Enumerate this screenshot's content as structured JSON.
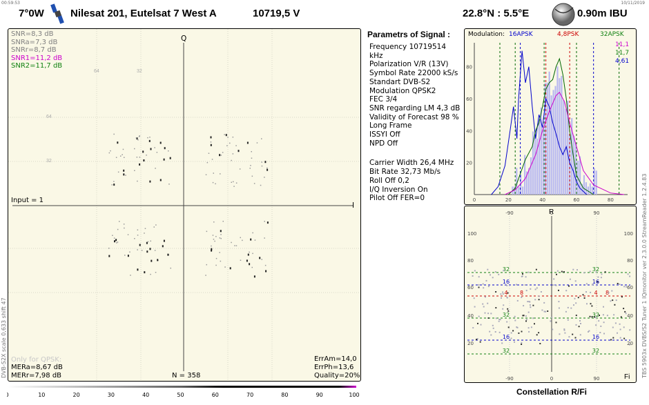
{
  "header": {
    "time": "00:59:53",
    "date": "10/11/2019",
    "sat_pos": "7°0W",
    "sat_name": "Nilesat 201, Eutelsat 7 West A",
    "freq_pol": "10719,5  V",
    "location": "22.8°N : 5.5°E",
    "dish": "0.90m  IBU"
  },
  "constellation": {
    "snr_lines": [
      {
        "text": "SNR=8,3 dB",
        "color": "#808080"
      },
      {
        "text": "SNRa=7,3 dB",
        "color": "#808080"
      },
      {
        "text": "SNRr=8,7 dB",
        "color": "#808080"
      },
      {
        "text": "SNR1=11,2 dB",
        "color": "#cc00cc"
      },
      {
        "text": "SNR2=11,7 dB",
        "color": "#108010"
      }
    ],
    "q_label": "Q",
    "i_label": "I",
    "input_label": "Input = 1",
    "only_qpsk": "Only for QPSK:",
    "mera": "MERa=8,67 dB",
    "merr": "MERr=7,98 dB",
    "n_label": "N = 358",
    "err_am": "ErrAm=14,0",
    "err_ph": "ErrPh=13,6",
    "quality": "Quality=20%",
    "grid_labels": [
      "64",
      "32",
      "32",
      "64"
    ]
  },
  "params": {
    "title": "Parametrs of Signal :",
    "lines": [
      "Frequency  10719514 kHz",
      "Polarization   V/R (13V)",
      "Symbol Rate   22000 kS/s",
      "Standart  DVB-S2",
      "Modulation   QPSK2",
      "FEC  3/4",
      "SNR regarding LM   4,3 dB",
      "Validity of Forecast  98 %",
      "Long  Frame",
      "ISSYI  Off",
      "NPD   Off"
    ],
    "lines2": [
      "Carrier Width   26,4 MHz",
      "Bit Rate   32,73 Mb/s",
      "Roll Off   0,2",
      "I/Q Inversion     On",
      "Pilot   Off        FER=0"
    ]
  },
  "histogram": {
    "modulation_label": "Modulation:",
    "m16": "16APSK",
    "m48": "4,8PSK",
    "m32": "32APSK",
    "v1": "11,1",
    "v2": "11,7",
    "v3": "4,61",
    "y_ticks": [
      "80",
      "60",
      "40",
      "20"
    ],
    "x_ticks": [
      "0",
      "20",
      "40",
      "60",
      "80"
    ],
    "colors": {
      "blue": "#0000cc",
      "green": "#006600",
      "magenta": "#cc00cc",
      "red": "#cc0000",
      "bars": "#b8b8f0"
    }
  },
  "polar": {
    "r_label": "R",
    "fi_label": "Fi",
    "top_ticks": [
      "-90",
      "0",
      "90"
    ],
    "bottom_ticks": [
      "-90",
      "0",
      "90"
    ],
    "y_ticks": [
      "100",
      "80",
      "60",
      "40",
      "20"
    ],
    "ring_labels": [
      "32",
      "16",
      "4",
      "8",
      "32",
      "16",
      "32"
    ]
  },
  "footer": {
    "constellation_label": "Constellation  R/Fi",
    "scale_ticks": [
      "0",
      "10",
      "20",
      "30",
      "40",
      "50",
      "60",
      "70",
      "80",
      "90",
      "100"
    ]
  },
  "side_texts": {
    "left": "DVB-S2X  scale 0,633  shift 47",
    "right": "TBS 5903x DVBS/S2 Tuner 1    IQmonitor  ver 2.3.0.0   StreamReader 1.2.4.83"
  }
}
